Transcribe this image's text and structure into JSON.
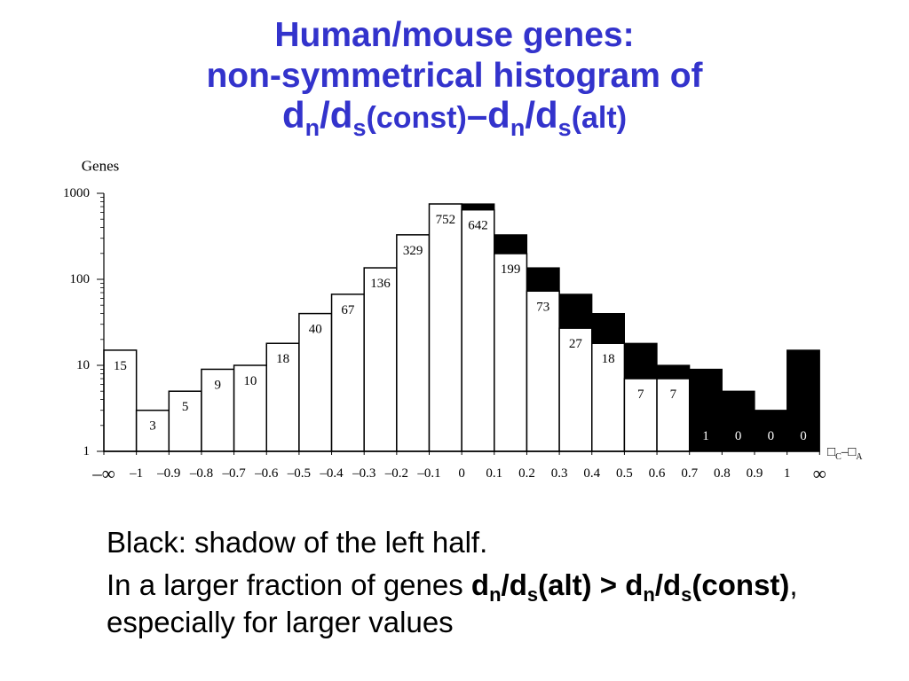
{
  "theme": {
    "title_color": "#3333cc",
    "text_color": "#000000",
    "background": "#ffffff"
  },
  "title": {
    "line1": "Human/mouse genes:",
    "line2": "non-symmetrical histogram of",
    "line3": [
      "d",
      "n",
      "/d",
      "s",
      "(const)",
      "–d",
      "n",
      "/d",
      "s",
      "(alt)"
    ]
  },
  "chart_data": {
    "type": "bar",
    "ylabel": "Genes",
    "xlabel": [
      "□",
      "C",
      "–□",
      "A"
    ],
    "y_scale": "log",
    "ylim": [
      1,
      1000
    ],
    "yticks": [
      1,
      10,
      100,
      1000
    ],
    "bin_edges": [
      "–∞",
      "–1",
      "–0.9",
      "–0.8",
      "–0.7",
      "–0.6",
      "–0.5",
      "–0.4",
      "–0.3",
      "–0.2",
      "–0.1",
      "0",
      "0.1",
      "0.2",
      "0.3",
      "0.4",
      "0.5",
      "0.6",
      "0.7",
      "0.8",
      "0.9",
      "1",
      "∞"
    ],
    "series": [
      {
        "fill": "#ffffff",
        "value_labels": true,
        "values": [
          15,
          3,
          5,
          9,
          10,
          18,
          40,
          67,
          136,
          329,
          752,
          642,
          199,
          73,
          27,
          18,
          7,
          7,
          1,
          0,
          0,
          0
        ]
      },
      {
        "fill": "#000000",
        "values": [
          null,
          null,
          null,
          null,
          null,
          null,
          null,
          null,
          null,
          null,
          null,
          752,
          329,
          136,
          67,
          40,
          18,
          10,
          9,
          5,
          3,
          15
        ]
      }
    ],
    "grid": false
  },
  "notes": {
    "line1": "Black: shadow of the left half.",
    "line2": {
      "lead": "In a larger fraction of genes ",
      "formula": [
        "d",
        "n",
        "/d",
        "s",
        "(alt) > d",
        "n",
        "/d",
        "s",
        "(const)"
      ],
      "trail": ","
    },
    "line3": "especially for larger values"
  }
}
